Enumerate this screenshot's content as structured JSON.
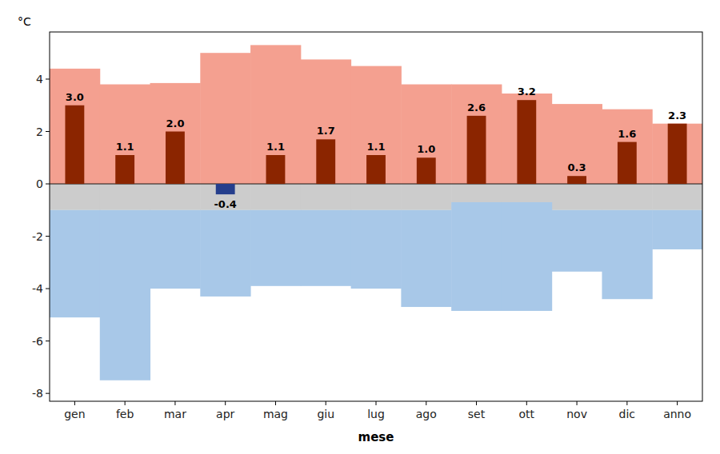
{
  "chart_data": {
    "type": "bar",
    "xlabel": "mese",
    "ylabel": "°C",
    "categories": [
      "gen",
      "feb",
      "mar",
      "apr",
      "mag",
      "giu",
      "lug",
      "ago",
      "set",
      "ott",
      "nov",
      "dic",
      "anno"
    ],
    "values": [
      3.0,
      1.1,
      2.0,
      -0.4,
      1.1,
      1.7,
      1.1,
      1.0,
      2.6,
      3.2,
      0.3,
      1.6,
      2.3
    ],
    "value_labels": [
      "3.0",
      "1.1",
      "2.0",
      "-0.4",
      "1.1",
      "1.7",
      "1.1",
      "1.0",
      "2.6",
      "3.2",
      "0.3",
      "1.6",
      "2.3"
    ],
    "colors": [
      "#8B2500",
      "#8B2500",
      "#8B2500",
      "#253E8C",
      "#8B2500",
      "#8B2500",
      "#8B2500",
      "#8B2500",
      "#8B2500",
      "#8B2500",
      "#8B2500",
      "#8B2500",
      "#8B2500"
    ],
    "data_labels": true,
    "bands": [
      {
        "color": "#F4A090",
        "low": [
          0.0,
          0.0,
          0.0,
          0.0,
          0.0,
          0.0,
          0.0,
          0.0,
          0.0,
          0.0,
          0.0,
          0.0,
          0.0
        ],
        "high": [
          4.4,
          3.8,
          3.85,
          5.0,
          5.3,
          4.75,
          4.5,
          3.8,
          3.8,
          3.45,
          3.05,
          2.85,
          2.3
        ]
      },
      {
        "color": "#CCCCCC",
        "low": [
          -1.0,
          -1.0,
          -1.0,
          -1.0,
          -1.0,
          -1.0,
          -1.0,
          -1.0,
          -0.7,
          -0.7,
          -1.0,
          -1.0,
          -1.0
        ],
        "high": [
          0.0,
          0.0,
          0.0,
          0.0,
          0.0,
          0.0,
          0.0,
          0.0,
          0.0,
          0.0,
          0.0,
          0.0,
          0.0
        ]
      },
      {
        "color": "#A8C8E8",
        "low": [
          -5.1,
          -7.5,
          -4.0,
          -4.3,
          -3.9,
          -3.9,
          -4.0,
          -4.7,
          -4.85,
          -4.85,
          -3.35,
          -4.4,
          -2.5
        ],
        "high": [
          -1.0,
          -1.0,
          -1.0,
          -1.0,
          -1.0,
          -1.0,
          -1.0,
          -1.0,
          -0.7,
          -0.7,
          -1.0,
          -1.0,
          -1.0
        ]
      }
    ],
    "ylim": [
      -8.3,
      5.8
    ],
    "yticks": [
      -8,
      -6,
      -4,
      -2,
      0,
      2,
      4
    ],
    "grid": false
  }
}
